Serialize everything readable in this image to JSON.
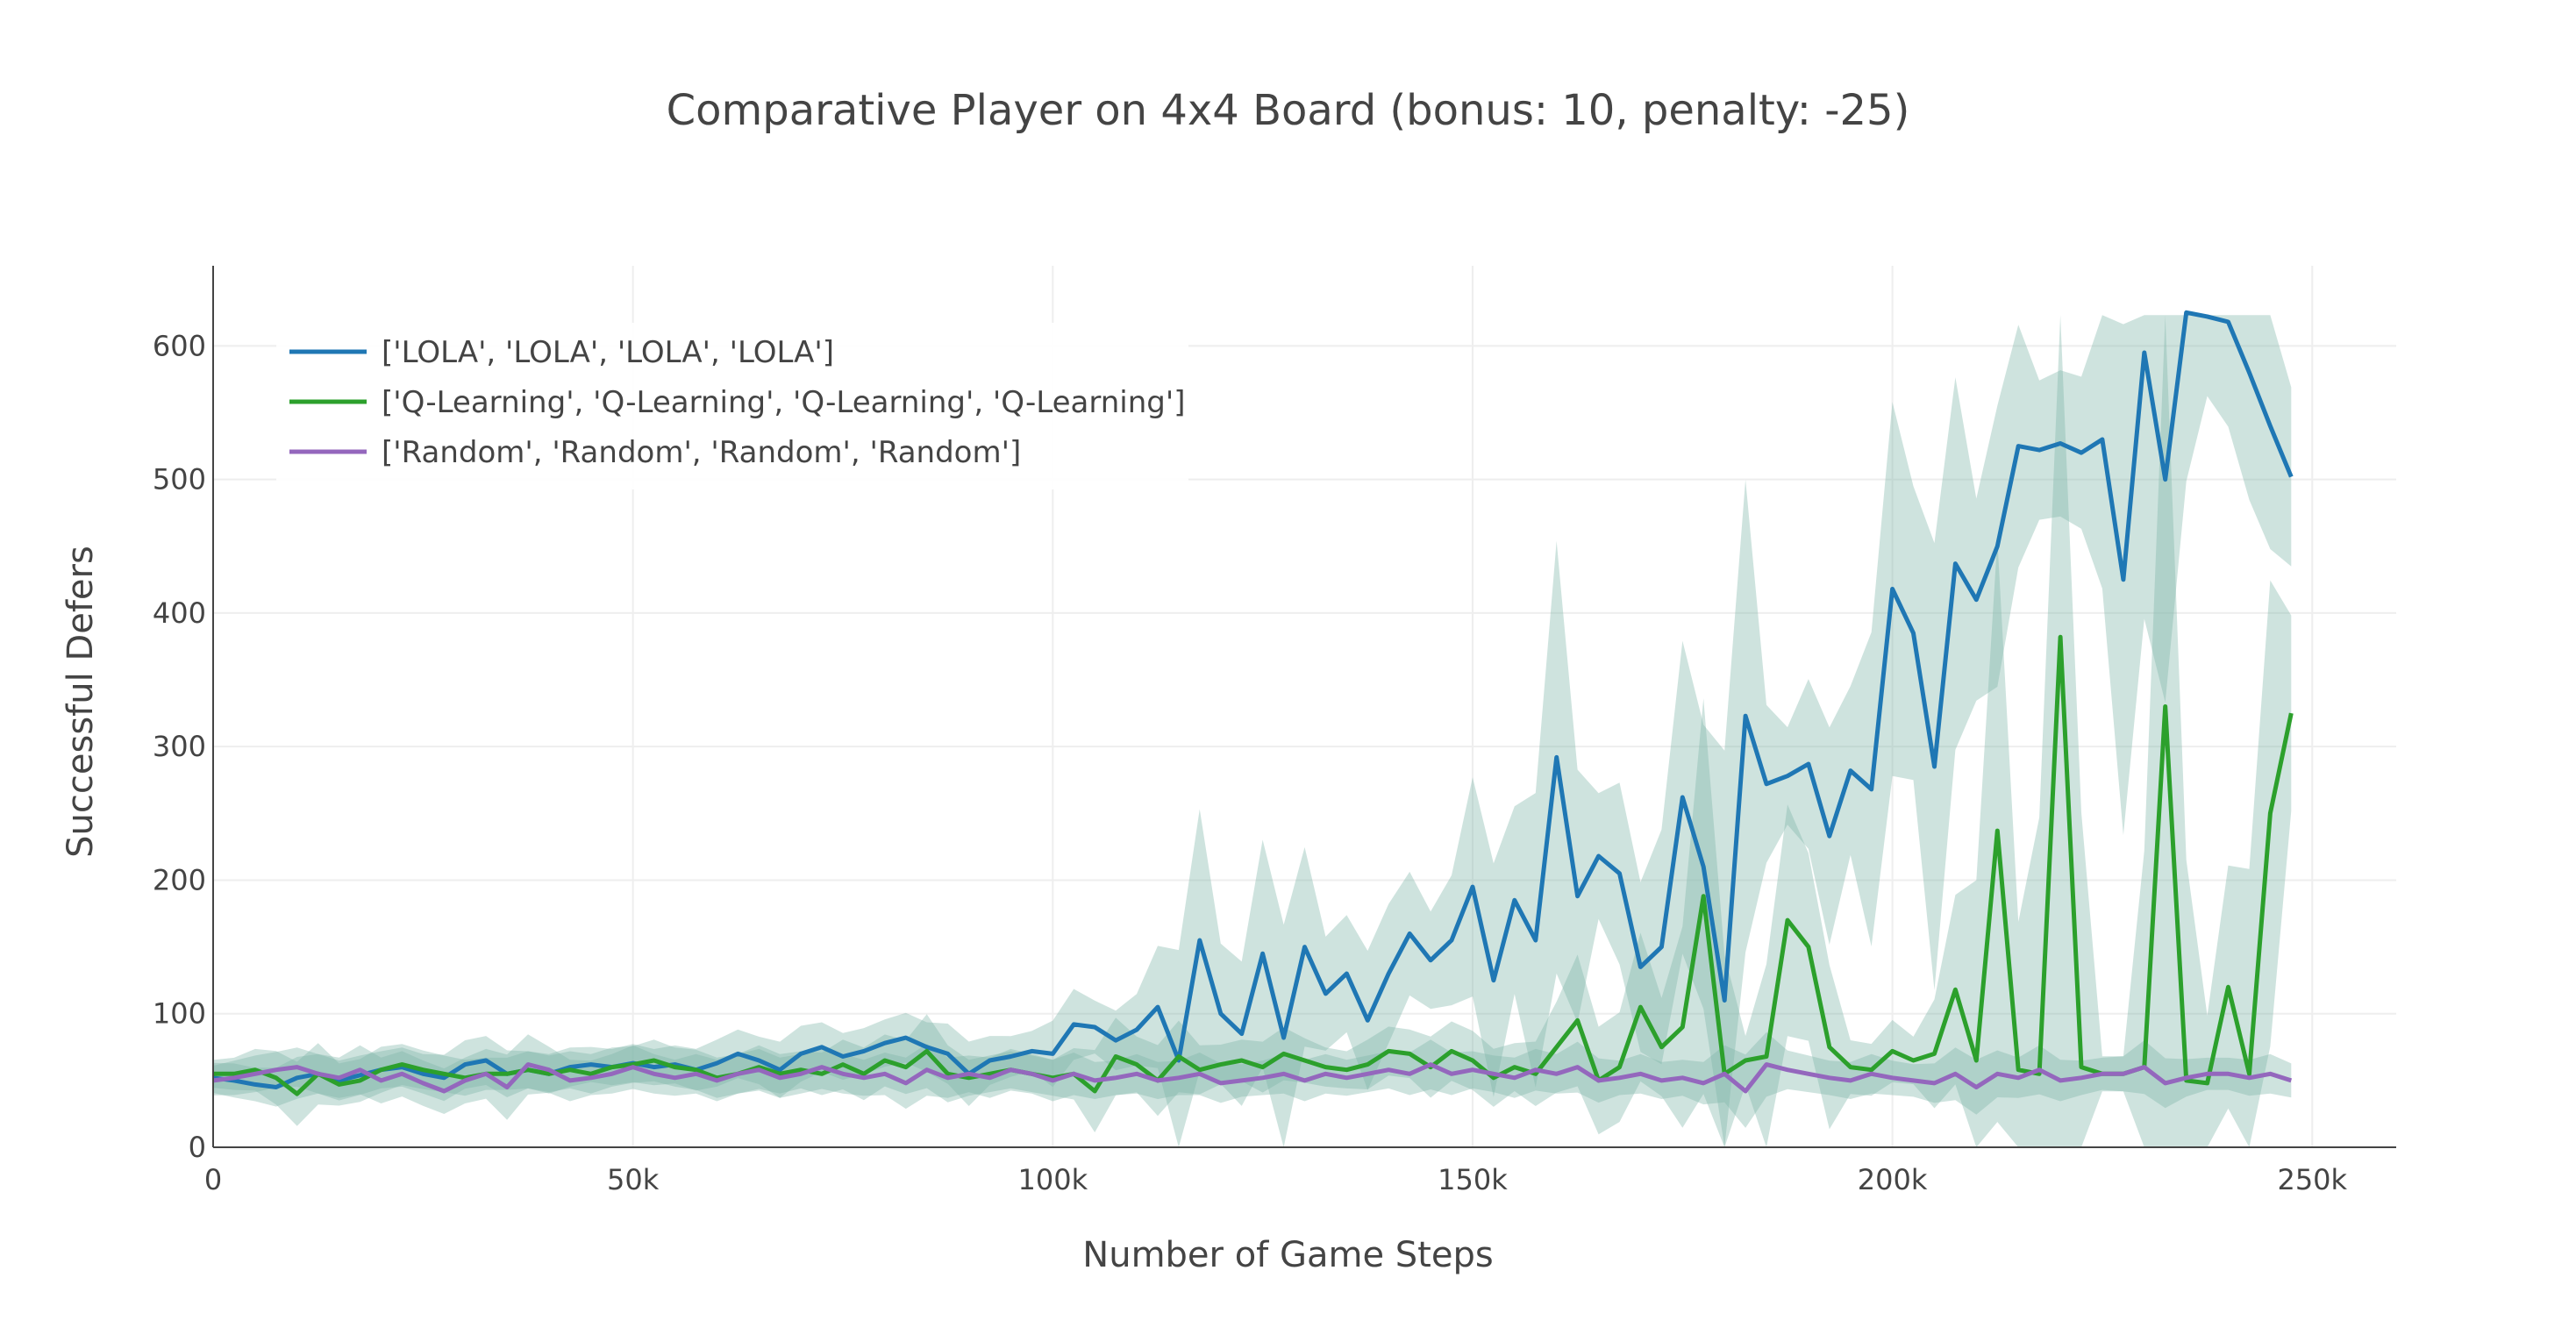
{
  "chart_data": {
    "type": "line",
    "title": "Comparative Player on 4x4 Board (bonus: 10, penalty: -25)",
    "xlabel": "Number of Game Steps",
    "ylabel": "Successful Defers",
    "xlim": [
      0,
      260000
    ],
    "ylim": [
      0,
      660
    ],
    "x_ticks": [
      0,
      50000,
      100000,
      150000,
      200000,
      250000
    ],
    "x_tick_labels": [
      "0",
      "50k",
      "100k",
      "150k",
      "200k",
      "250k"
    ],
    "y_ticks": [
      0,
      100,
      200,
      300,
      400,
      500,
      600
    ],
    "y_tick_labels": [
      "0",
      "100",
      "200",
      "300",
      "400",
      "500",
      "600"
    ],
    "grid": true,
    "legend_position": "top-left",
    "band_color": "#7fb5a8",
    "series": [
      {
        "name": "['LOLA', 'LOLA', 'LOLA', 'LOLA']",
        "color": "#1f77b4",
        "x": [
          0,
          2500,
          5000,
          7500,
          10000,
          12500,
          15000,
          17500,
          20000,
          22500,
          25000,
          27500,
          30000,
          32500,
          35000,
          37500,
          40000,
          42500,
          45000,
          47500,
          50000,
          52500,
          55000,
          57500,
          60000,
          62500,
          65000,
          67500,
          70000,
          72500,
          75000,
          77500,
          80000,
          82500,
          85000,
          87500,
          90000,
          92500,
          95000,
          97500,
          100000,
          102500,
          105000,
          107500,
          110000,
          112500,
          115000,
          117500,
          120000,
          122500,
          125000,
          127500,
          130000,
          132500,
          135000,
          137500,
          140000,
          142500,
          145000,
          147500,
          150000,
          152500,
          155000,
          157500,
          160000,
          162500,
          165000,
          167500,
          170000,
          172500,
          175000,
          177500,
          180000,
          182500,
          185000,
          187500,
          190000,
          192500,
          195000,
          197500,
          200000,
          202500,
          205000,
          207500,
          210000,
          212500,
          215000,
          217500,
          220000,
          222500,
          225000,
          227500,
          230000,
          232500,
          235000,
          237500,
          240000,
          242500,
          245000,
          247500
        ],
        "y": [
          52,
          50,
          47,
          45,
          52,
          55,
          50,
          54,
          58,
          60,
          55,
          52,
          62,
          65,
          55,
          58,
          55,
          60,
          62,
          60,
          63,
          60,
          62,
          58,
          63,
          70,
          65,
          58,
          70,
          75,
          68,
          72,
          78,
          82,
          75,
          70,
          55,
          65,
          68,
          72,
          70,
          92,
          90,
          80,
          88,
          105,
          65,
          155,
          100,
          85,
          145,
          82,
          150,
          115,
          130,
          95,
          130,
          160,
          140,
          155,
          195,
          125,
          185,
          155,
          292,
          188,
          218,
          205,
          135,
          150,
          262,
          210,
          110,
          323,
          272,
          278,
          287,
          233,
          282,
          268,
          418,
          385,
          285,
          437,
          410,
          450,
          525,
          522,
          527,
          520,
          530,
          425,
          595,
          500,
          625,
          622,
          618,
          580,
          540,
          502
        ]
      },
      {
        "name": "['Q-Learning', 'Q-Learning', 'Q-Learning', 'Q-Learning']",
        "color": "#2ca02c",
        "x": [
          0,
          2500,
          5000,
          7500,
          10000,
          12500,
          15000,
          17500,
          20000,
          22500,
          25000,
          27500,
          30000,
          32500,
          35000,
          37500,
          40000,
          42500,
          45000,
          47500,
          50000,
          52500,
          55000,
          57500,
          60000,
          62500,
          65000,
          67500,
          70000,
          72500,
          75000,
          77500,
          80000,
          82500,
          85000,
          87500,
          90000,
          92500,
          95000,
          97500,
          100000,
          102500,
          105000,
          107500,
          110000,
          112500,
          115000,
          117500,
          120000,
          122500,
          125000,
          127500,
          130000,
          132500,
          135000,
          137500,
          140000,
          142500,
          145000,
          147500,
          150000,
          152500,
          155000,
          157500,
          160000,
          162500,
          165000,
          167500,
          170000,
          172500,
          175000,
          177500,
          180000,
          182500,
          185000,
          187500,
          190000,
          192500,
          195000,
          197500,
          200000,
          202500,
          205000,
          207500,
          210000,
          212500,
          215000,
          217500,
          220000,
          222500,
          225000,
          227500,
          230000,
          232500,
          235000,
          237500,
          240000,
          242500,
          245000,
          247500
        ],
        "y": [
          55,
          55,
          58,
          52,
          40,
          55,
          47,
          50,
          58,
          62,
          58,
          55,
          52,
          55,
          55,
          58,
          55,
          58,
          55,
          60,
          62,
          65,
          60,
          58,
          52,
          55,
          60,
          55,
          58,
          55,
          62,
          55,
          65,
          60,
          72,
          55,
          52,
          55,
          58,
          55,
          52,
          55,
          42,
          68,
          62,
          50,
          68,
          58,
          62,
          65,
          60,
          70,
          65,
          60,
          58,
          62,
          72,
          70,
          60,
          72,
          65,
          52,
          60,
          55,
          75,
          95,
          50,
          60,
          105,
          75,
          90,
          188,
          55,
          65,
          68,
          170,
          150,
          75,
          60,
          58,
          72,
          65,
          70,
          118,
          65,
          237,
          58,
          55,
          382,
          60,
          55,
          55,
          60,
          330,
          50,
          48,
          120,
          55,
          250,
          325
        ]
      },
      {
        "name": "['Random', 'Random', 'Random', 'Random']",
        "color": "#9467bd",
        "x": [
          0,
          2500,
          5000,
          7500,
          10000,
          12500,
          15000,
          17500,
          20000,
          22500,
          25000,
          27500,
          30000,
          32500,
          35000,
          37500,
          40000,
          42500,
          45000,
          47500,
          50000,
          52500,
          55000,
          57500,
          60000,
          62500,
          65000,
          67500,
          70000,
          72500,
          75000,
          77500,
          80000,
          82500,
          85000,
          87500,
          90000,
          92500,
          95000,
          97500,
          100000,
          102500,
          105000,
          107500,
          110000,
          112500,
          115000,
          117500,
          120000,
          122500,
          125000,
          127500,
          130000,
          132500,
          135000,
          137500,
          140000,
          142500,
          145000,
          147500,
          150000,
          152500,
          155000,
          157500,
          160000,
          162500,
          165000,
          167500,
          170000,
          172500,
          175000,
          177500,
          180000,
          182500,
          185000,
          187500,
          190000,
          192500,
          195000,
          197500,
          200000,
          202500,
          205000,
          207500,
          210000,
          212500,
          215000,
          217500,
          220000,
          222500,
          225000,
          227500,
          230000,
          232500,
          235000,
          237500,
          240000,
          242500,
          245000,
          247500
        ],
        "y": [
          50,
          52,
          55,
          58,
          60,
          55,
          52,
          58,
          50,
          55,
          48,
          42,
          50,
          55,
          45,
          62,
          58,
          50,
          52,
          55,
          60,
          55,
          52,
          55,
          50,
          55,
          58,
          52,
          55,
          60,
          55,
          52,
          55,
          48,
          58,
          52,
          55,
          52,
          58,
          55,
          50,
          55,
          50,
          52,
          55,
          50,
          52,
          55,
          48,
          50,
          52,
          55,
          50,
          55,
          52,
          55,
          58,
          55,
          62,
          55,
          58,
          55,
          52,
          58,
          55,
          60,
          50,
          52,
          55,
          50,
          52,
          48,
          55,
          42,
          62,
          58,
          55,
          52,
          50,
          55,
          52,
          50,
          48,
          55,
          45,
          55,
          52,
          58,
          50,
          52,
          55,
          55,
          60,
          48,
          52,
          55,
          55,
          52,
          55,
          50
        ]
      }
    ]
  }
}
